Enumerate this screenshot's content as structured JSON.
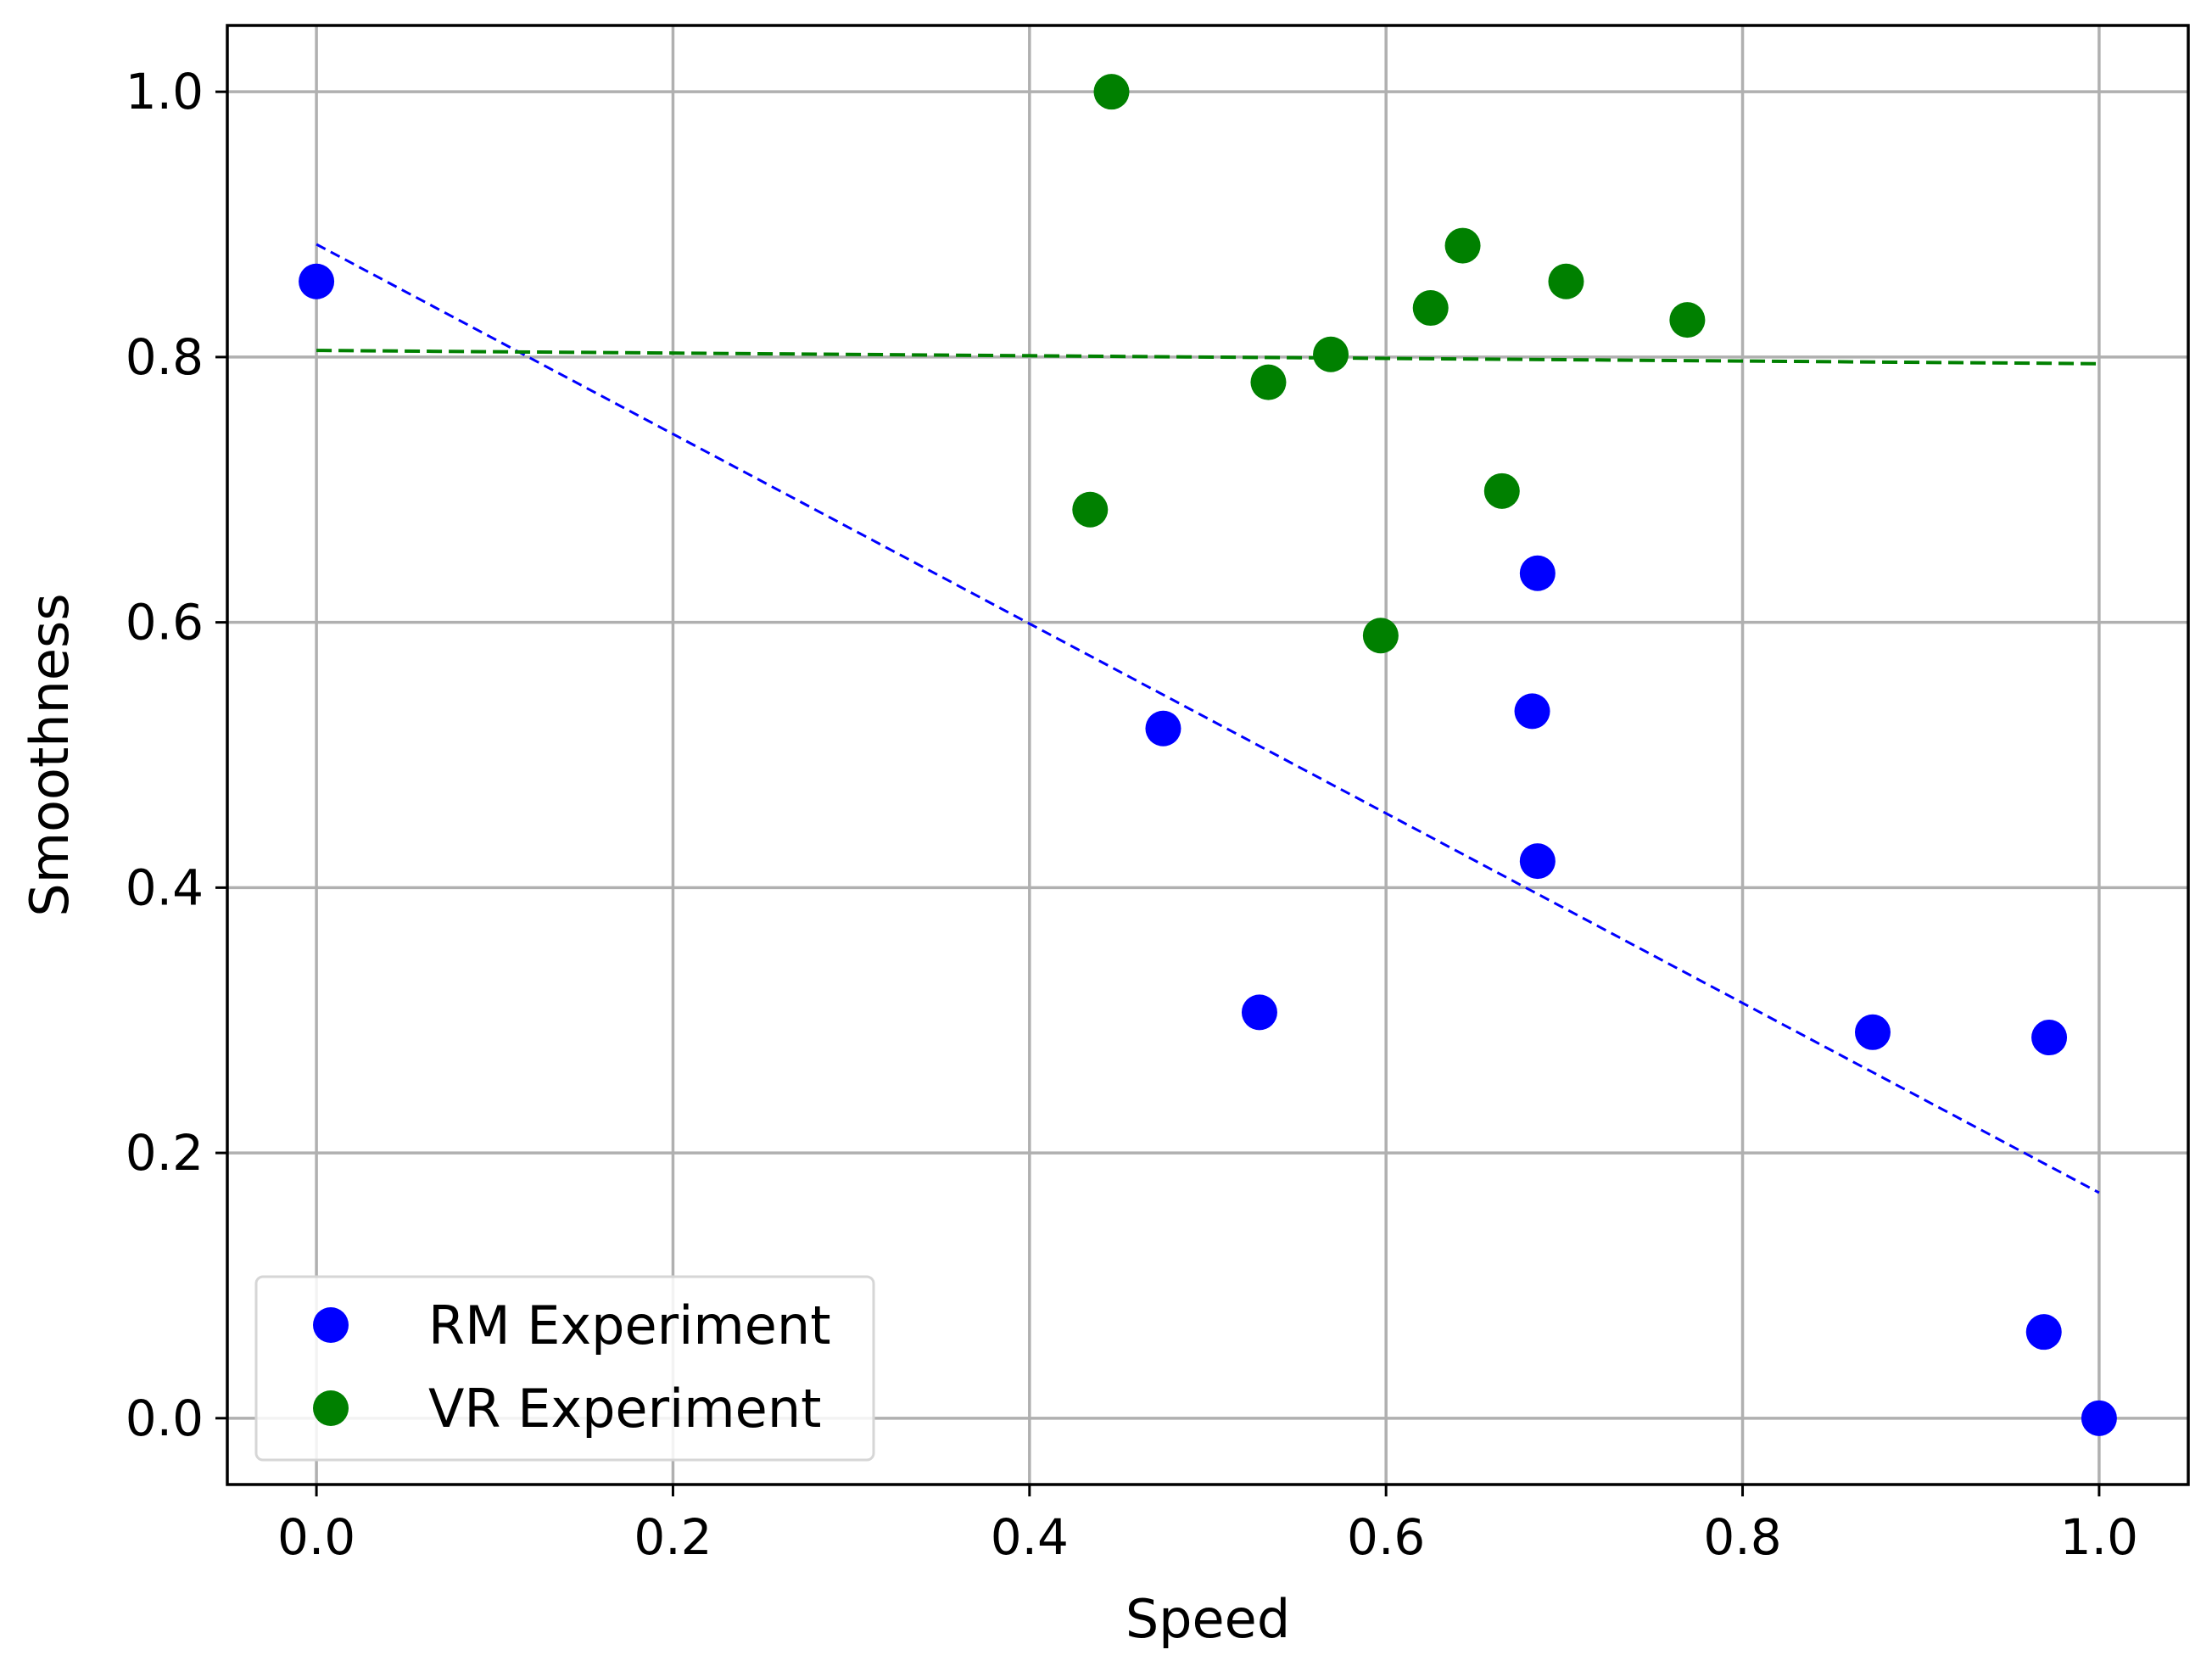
{
  "chart_data": {
    "type": "scatter",
    "title": "",
    "xlabel": "Speed",
    "ylabel": "Smoothness",
    "xlim": [
      -0.05,
      1.05
    ],
    "ylim": [
      -0.05,
      1.05
    ],
    "xticks": [
      0.0,
      0.2,
      0.4,
      0.6,
      0.8,
      1.0
    ],
    "yticks": [
      0.0,
      0.2,
      0.4,
      0.6,
      0.8,
      1.0
    ],
    "xtick_labels": [
      "0.0",
      "0.2",
      "0.4",
      "0.6",
      "0.8",
      "1.0"
    ],
    "ytick_labels": [
      "0.0",
      "0.2",
      "0.4",
      "0.6",
      "0.8",
      "1.0"
    ],
    "grid": true,
    "legend_position": "bottom-left",
    "series": [
      {
        "name": "RM Experiment",
        "color": "#0000ff",
        "points": [
          [
            0.0,
            0.857
          ],
          [
            0.475,
            0.52
          ],
          [
            0.529,
            0.306
          ],
          [
            0.685,
            0.637
          ],
          [
            0.682,
            0.533
          ],
          [
            0.685,
            0.42
          ],
          [
            0.873,
            0.291
          ],
          [
            0.972,
            0.287
          ],
          [
            0.969,
            0.065
          ],
          [
            1.0,
            0.0
          ]
        ],
        "trend": {
          "style": "dashed",
          "x": [
            0.0,
            1.0
          ],
          "y": [
            0.885,
            0.17
          ]
        }
      },
      {
        "name": "VR Experiment",
        "color": "#008000",
        "points": [
          [
            0.446,
            1.0
          ],
          [
            0.434,
            0.685
          ],
          [
            0.534,
            0.781
          ],
          [
            0.569,
            0.802
          ],
          [
            0.597,
            0.59
          ],
          [
            0.625,
            0.837
          ],
          [
            0.643,
            0.884
          ],
          [
            0.665,
            0.699
          ],
          [
            0.701,
            0.857
          ],
          [
            0.769,
            0.828
          ]
        ],
        "trend": {
          "style": "dashed",
          "x": [
            0.0,
            1.0
          ],
          "y": [
            0.805,
            0.795
          ]
        }
      }
    ]
  }
}
